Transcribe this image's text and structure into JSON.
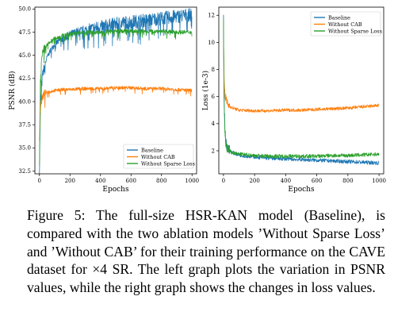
{
  "chart_data": [
    {
      "type": "line",
      "xlabel": "Epochs",
      "ylabel": "PSNR (dB)",
      "xlim": [
        -30,
        1030
      ],
      "ylim": [
        32.2,
        50.2
      ],
      "xticks": [
        0,
        200,
        400,
        600,
        800,
        1000
      ],
      "yticks": [
        32.5,
        35.0,
        37.5,
        40.0,
        42.5,
        45.0,
        47.5,
        50.0
      ],
      "ytick_labels": [
        "32.5",
        "35.0",
        "37.5",
        "40.0",
        "42.5",
        "45.0",
        "47.5",
        "50.0"
      ],
      "legend_position": "lower-right",
      "series": [
        {
          "name": "Baseline",
          "color": "#1f77b4",
          "x": [
            0,
            5,
            10,
            20,
            30,
            50,
            75,
            100,
            150,
            200,
            250,
            300,
            350,
            400,
            450,
            500,
            550,
            600,
            650,
            700,
            750,
            800,
            850,
            900,
            950,
            1000
          ],
          "y": [
            32.5,
            38.5,
            40.8,
            42.8,
            43.6,
            44.8,
            45.6,
            46.2,
            46.8,
            47.2,
            47.5,
            47.7,
            47.9,
            48.1,
            48.2,
            48.4,
            48.5,
            48.6,
            48.7,
            48.8,
            48.9,
            49.0,
            49.1,
            49.2,
            49.3,
            49.4
          ]
        },
        {
          "name": "Without CAB",
          "color": "#ff7f0e",
          "x": [
            0,
            5,
            10,
            20,
            30,
            50,
            75,
            100,
            150,
            200,
            300,
            400,
            500,
            600,
            700,
            800,
            900,
            1000
          ],
          "y": [
            35.8,
            38.8,
            39.8,
            40.5,
            40.8,
            41.0,
            41.1,
            41.2,
            41.3,
            41.3,
            41.4,
            41.4,
            41.5,
            41.5,
            41.4,
            41.4,
            41.3,
            41.2
          ]
        },
        {
          "name": "Without Sparse Loss",
          "color": "#2ca02c",
          "x": [
            0,
            5,
            10,
            20,
            30,
            50,
            75,
            100,
            150,
            200,
            250,
            300,
            400,
            500,
            600,
            700,
            800,
            900,
            1000
          ],
          "y": [
            32.6,
            41.5,
            43.8,
            45.0,
            45.6,
            46.1,
            46.5,
            46.8,
            47.1,
            47.3,
            47.4,
            47.5,
            47.5,
            47.6,
            47.6,
            47.6,
            47.6,
            47.5,
            47.5
          ]
        }
      ]
    },
    {
      "type": "line",
      "xlabel": "Epochs",
      "ylabel": "Loss (1e-3)",
      "xlim": [
        -30,
        1030
      ],
      "ylim": [
        0.3,
        12.6
      ],
      "xticks": [
        0,
        200,
        400,
        600,
        800,
        1000
      ],
      "yticks": [
        2,
        4,
        6,
        8,
        10,
        12
      ],
      "legend_position": "upper-right",
      "series": [
        {
          "name": "Baseline",
          "color": "#1f77b4",
          "x": [
            0,
            3,
            6,
            10,
            15,
            20,
            30,
            50,
            75,
            100,
            150,
            200,
            300,
            400,
            500,
            600,
            700,
            800,
            900,
            1000
          ],
          "y": [
            12.0,
            7.5,
            5.0,
            3.5,
            2.8,
            2.4,
            2.1,
            1.9,
            1.8,
            1.7,
            1.6,
            1.55,
            1.45,
            1.4,
            1.35,
            1.3,
            1.25,
            1.2,
            1.15,
            1.1
          ]
        },
        {
          "name": "Without CAB",
          "color": "#ff7f0e",
          "x": [
            0,
            3,
            6,
            10,
            15,
            20,
            30,
            50,
            75,
            100,
            200,
            300,
            400,
            500,
            600,
            700,
            800,
            900,
            1000
          ],
          "y": [
            10.3,
            8.0,
            6.8,
            6.2,
            5.9,
            5.6,
            5.4,
            5.2,
            5.1,
            5.0,
            4.95,
            4.95,
            5.0,
            5.0,
            5.05,
            5.1,
            5.15,
            5.25,
            5.35
          ]
        },
        {
          "name": "Without Sparse Loss",
          "color": "#2ca02c",
          "x": [
            0,
            3,
            6,
            10,
            15,
            20,
            30,
            50,
            75,
            100,
            150,
            200,
            300,
            400,
            500,
            600,
            700,
            800,
            900,
            1000
          ],
          "y": [
            11.5,
            6.5,
            4.2,
            3.2,
            2.6,
            2.3,
            2.1,
            1.9,
            1.8,
            1.75,
            1.7,
            1.65,
            1.6,
            1.6,
            1.6,
            1.6,
            1.65,
            1.65,
            1.7,
            1.75
          ]
        }
      ]
    }
  ],
  "caption": "Figure 5: The full-size HSR-KAN model (Baseline), is compared with the two ablation models ’Without Sparse Loss’ and ’Without CAB’ for their training performance on the CAVE dataset for ×4 SR. The left graph plots the variation in PSNR values, while the right graph shows the changes in loss values."
}
